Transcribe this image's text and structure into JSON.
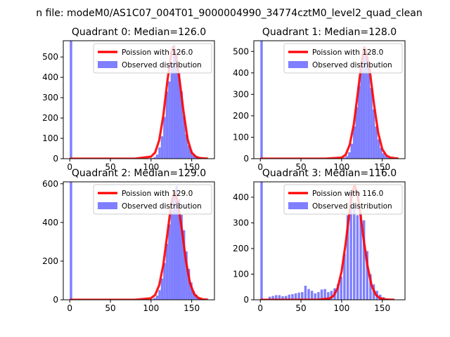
{
  "figure": {
    "suptitle": "n file: modeM0/AS1C07_004T01_9000004990_34774cztM0_level2_quad_clean"
  },
  "colors": {
    "hist": "#7f7fff",
    "poisson": "#ff0000",
    "axes": "#000000",
    "background": "#ffffff"
  },
  "chart_data": [
    {
      "type": "bar",
      "title": "Quadrant 0: Median=126.0",
      "median": 126.0,
      "xlim": [
        -8,
        178
      ],
      "ylim": [
        0,
        580
      ],
      "xticks": [
        0,
        50,
        100,
        150
      ],
      "yticks": [
        0,
        100,
        200,
        300,
        400,
        500
      ],
      "legend_position": "top-right",
      "legend": [
        "Poission with 126.0",
        "Observed distribution"
      ],
      "series": [
        {
          "name": "Poission with 126.0",
          "type": "line",
          "x": [
            0,
            40,
            80,
            100,
            105,
            110,
            115,
            120,
            125,
            127,
            130,
            135,
            140,
            145,
            150,
            155,
            160,
            170
          ],
          "y": [
            0,
            0,
            0,
            10,
            30,
            90,
            210,
            380,
            520,
            550,
            520,
            390,
            230,
            95,
            30,
            10,
            3,
            0
          ]
        },
        {
          "name": "Observed distribution",
          "type": "hist",
          "x": [
            0,
            100,
            103,
            106,
            109,
            112,
            115,
            118,
            121,
            124,
            127,
            130,
            133,
            136,
            139,
            142,
            145,
            148,
            151,
            154,
            157,
            160,
            163,
            166
          ],
          "y": [
            580,
            3,
            8,
            20,
            55,
            110,
            205,
            330,
            380,
            470,
            560,
            510,
            420,
            330,
            210,
            120,
            65,
            40,
            20,
            12,
            6,
            4,
            2,
            1
          ]
        }
      ]
    },
    {
      "type": "bar",
      "title": "Quadrant 1: Median=128.0",
      "median": 128.0,
      "xlim": [
        -8,
        178
      ],
      "ylim": [
        0,
        550
      ],
      "xticks": [
        0,
        50,
        100,
        150
      ],
      "yticks": [
        0,
        100,
        200,
        300,
        400,
        500
      ],
      "legend_position": "top-right",
      "legend": [
        "Poission with 128.0",
        "Observed distribution"
      ],
      "series": [
        {
          "name": "Poission with 128.0",
          "type": "line",
          "x": [
            0,
            40,
            80,
            100,
            105,
            110,
            115,
            120,
            125,
            128,
            130,
            135,
            140,
            145,
            150,
            155,
            160,
            170
          ],
          "y": [
            0,
            0,
            0,
            5,
            18,
            65,
            160,
            310,
            460,
            520,
            500,
            400,
            250,
            120,
            45,
            15,
            5,
            0
          ]
        },
        {
          "name": "Observed distribution",
          "type": "hist",
          "x": [
            0,
            75,
            85,
            95,
            102,
            105,
            108,
            111,
            114,
            117,
            120,
            123,
            126,
            129,
            132,
            135,
            138,
            141,
            144,
            147,
            150,
            153,
            156,
            160
          ],
          "y": [
            550,
            3,
            2,
            3,
            5,
            12,
            30,
            70,
            150,
            240,
            340,
            420,
            500,
            480,
            430,
            330,
            230,
            150,
            90,
            50,
            25,
            12,
            6,
            2
          ]
        }
      ]
    },
    {
      "type": "bar",
      "title": "Quadrant 2: Median=129.0",
      "median": 129.0,
      "xlim": [
        -8,
        178
      ],
      "ylim": [
        0,
        610
      ],
      "xticks": [
        0,
        50,
        100,
        150
      ],
      "yticks": [
        0,
        200,
        400,
        600
      ],
      "legend_position": "top-right",
      "legend": [
        "Poission with 129.0",
        "Observed distribution"
      ],
      "series": [
        {
          "name": "Poission with 129.0",
          "type": "line",
          "x": [
            0,
            40,
            80,
            100,
            105,
            110,
            115,
            120,
            125,
            129,
            133,
            138,
            143,
            148,
            153,
            158,
            163,
            170
          ],
          "y": [
            0,
            0,
            0,
            8,
            25,
            75,
            180,
            340,
            500,
            560,
            500,
            360,
            200,
            85,
            30,
            10,
            3,
            0
          ]
        },
        {
          "name": "Observed distribution",
          "type": "hist",
          "x": [
            0,
            100,
            103,
            106,
            109,
            112,
            115,
            118,
            121,
            124,
            127,
            130,
            133,
            136,
            139,
            142,
            145,
            148,
            151,
            154,
            157,
            160,
            163,
            166
          ],
          "y": [
            610,
            3,
            10,
            22,
            50,
            110,
            190,
            290,
            390,
            460,
            540,
            590,
            520,
            440,
            360,
            250,
            160,
            90,
            45,
            25,
            12,
            6,
            3,
            1
          ]
        }
      ]
    },
    {
      "type": "bar",
      "title": "Quadrant 3: Median=116.0",
      "median": 116.0,
      "xlim": [
        -8,
        178
      ],
      "ylim": [
        0,
        460
      ],
      "xticks": [
        0,
        50,
        100,
        150
      ],
      "yticks": [
        0,
        100,
        200,
        300,
        400
      ],
      "legend_position": "top-right",
      "legend": [
        "Poission with 116.0",
        "Observed distribution"
      ],
      "series": [
        {
          "name": "Poission with 116.0",
          "type": "line",
          "x": [
            0,
            40,
            70,
            85,
            90,
            95,
            100,
            105,
            110,
            113,
            116,
            119,
            122,
            127,
            132,
            137,
            142,
            147,
            155,
            165
          ],
          "y": [
            0,
            0,
            0,
            5,
            15,
            45,
            110,
            220,
            350,
            420,
            445,
            420,
            360,
            240,
            130,
            55,
            20,
            6,
            1,
            0
          ]
        },
        {
          "name": "Observed distribution",
          "type": "hist",
          "x": [
            0,
            10,
            14,
            18,
            22,
            26,
            30,
            34,
            38,
            42,
            46,
            50,
            54,
            58,
            62,
            66,
            70,
            74,
            78,
            82,
            86,
            90,
            94,
            98,
            102,
            106,
            110,
            114,
            118,
            122,
            126,
            130,
            134,
            138,
            142,
            146,
            150,
            154
          ],
          "y": [
            460,
            12,
            15,
            18,
            18,
            14,
            15,
            20,
            22,
            25,
            28,
            30,
            55,
            42,
            35,
            25,
            30,
            40,
            42,
            30,
            35,
            45,
            60,
            90,
            180,
            330,
            420,
            370,
            330,
            340,
            310,
            190,
            100,
            60,
            35,
            20,
            10,
            5
          ]
        }
      ]
    }
  ]
}
